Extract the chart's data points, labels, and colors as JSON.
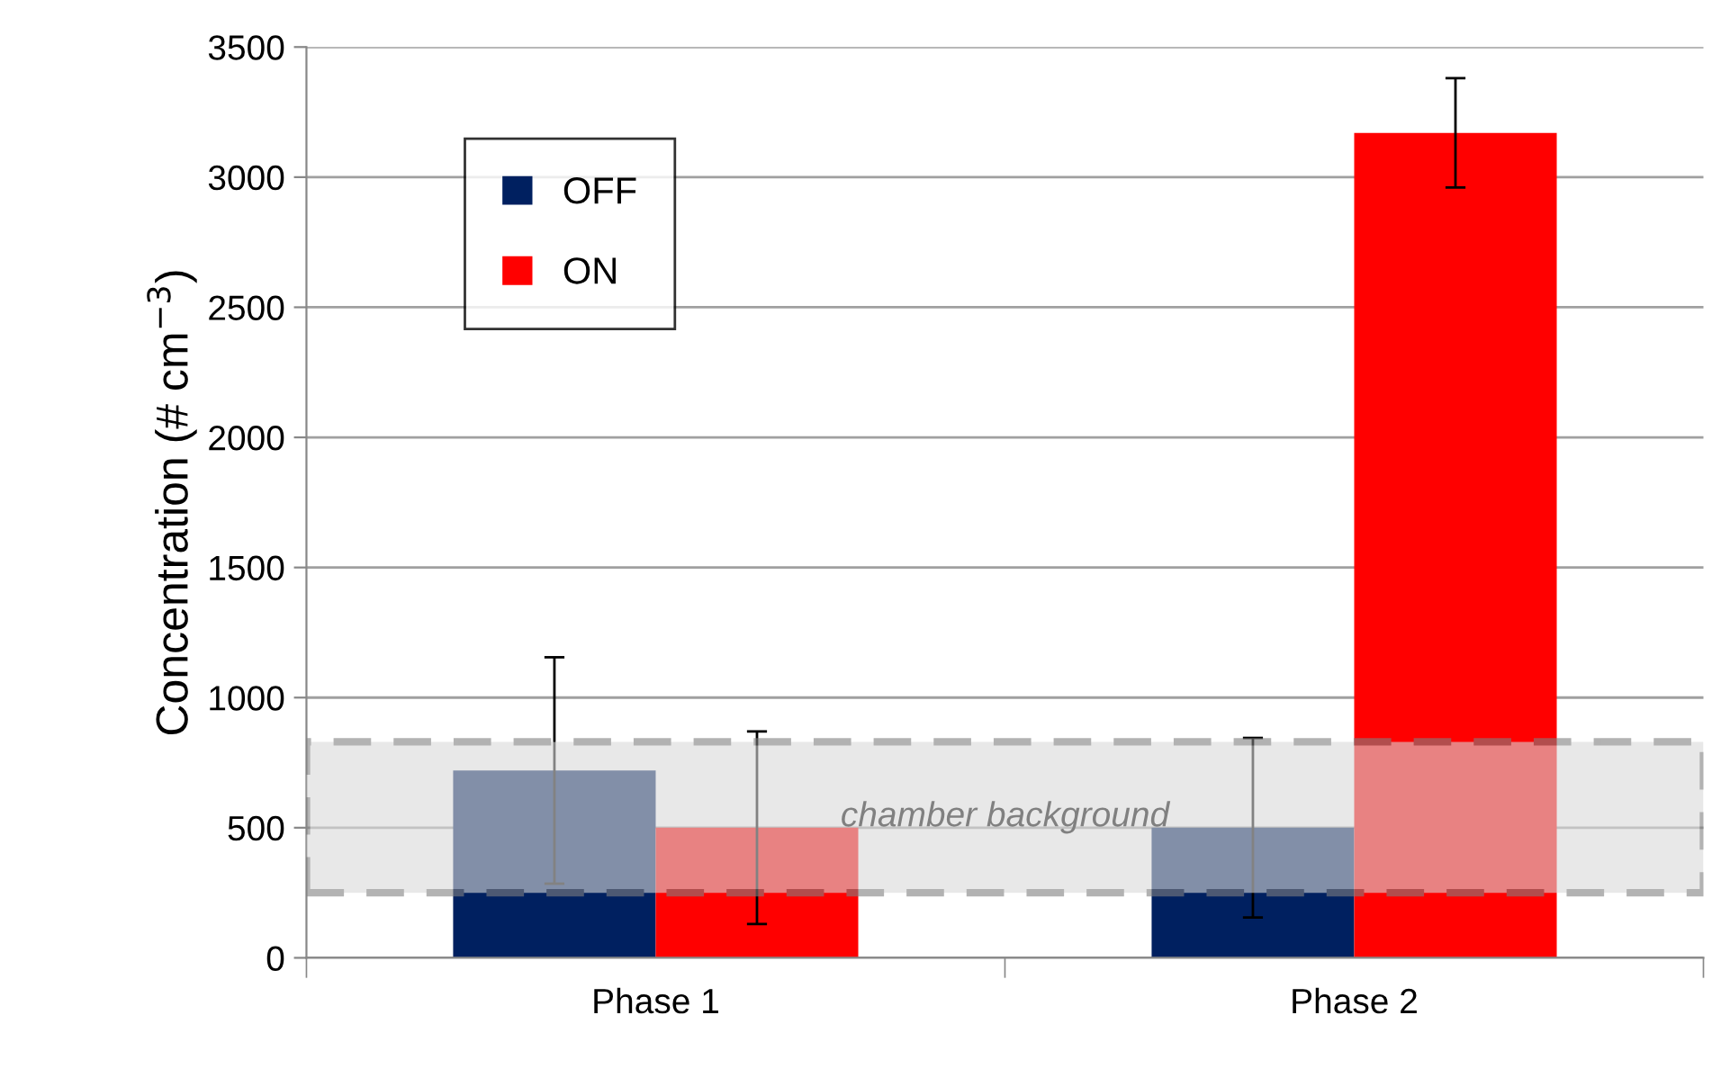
{
  "chart_data": {
    "type": "bar",
    "ylabel": "Concentration (# cm$^{−3}$)",
    "categories": [
      "Phase 1",
      "Phase 2"
    ],
    "series": [
      {
        "name": "OFF",
        "color": "#002060",
        "values": [
          720,
          500
        ],
        "errors": [
          435,
          345
        ]
      },
      {
        "name": "ON",
        "color": "#ff0000",
        "values": [
          500,
          3170
        ],
        "errors": [
          370,
          210
        ]
      }
    ],
    "ylim": [
      0,
      3500
    ],
    "yticks": [
      0,
      500,
      1000,
      1500,
      2000,
      2500,
      3000,
      3500
    ],
    "grid": "y",
    "legend": "top left",
    "bands": [
      {
        "axis": "y",
        "from": 250,
        "to": 830,
        "label": "chamber background",
        "color": "#d9d9d9"
      }
    ]
  }
}
